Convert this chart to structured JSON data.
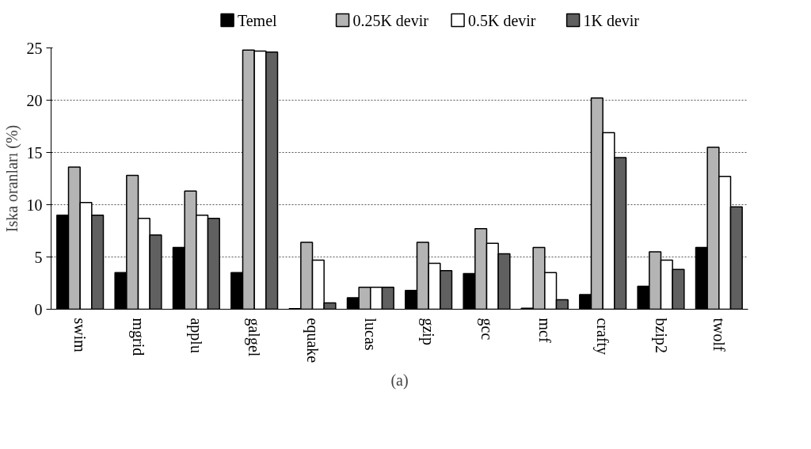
{
  "chart_data": {
    "type": "bar",
    "ylabel": "Iska oranları (%)",
    "annotations": [
      "(a)"
    ],
    "categories": [
      "swim",
      "mgrid",
      "applu",
      "galgel",
      "equake",
      "lucas",
      "gzip",
      "gcc",
      "mcf",
      "crafty",
      "bzip2",
      "twolf"
    ],
    "series": [
      {
        "name": "Temel",
        "color": "#000000",
        "values": [
          9.0,
          3.5,
          5.9,
          3.5,
          0.05,
          1.1,
          1.8,
          3.4,
          0.1,
          1.4,
          2.2,
          5.9
        ]
      },
      {
        "name": "0.25K devir",
        "color": "#b4b4b4",
        "values": [
          13.6,
          12.8,
          11.3,
          24.8,
          6.4,
          2.1,
          6.4,
          7.7,
          5.9,
          20.2,
          5.5,
          15.5
        ]
      },
      {
        "name": "0.5K devir",
        "color": "#ffffff",
        "values": [
          10.2,
          8.7,
          9.0,
          24.7,
          4.7,
          2.1,
          4.4,
          6.3,
          3.5,
          16.9,
          4.7,
          12.7
        ]
      },
      {
        "name": "1K devir",
        "color": "#606060",
        "values": [
          9.0,
          7.1,
          8.7,
          24.6,
          0.6,
          2.1,
          3.7,
          5.3,
          0.9,
          14.5,
          3.8,
          9.8
        ]
      }
    ],
    "ylim": [
      0,
      25
    ],
    "yticks": [
      0,
      5,
      10,
      15,
      20,
      25
    ],
    "grid": "y",
    "legend": "top"
  }
}
